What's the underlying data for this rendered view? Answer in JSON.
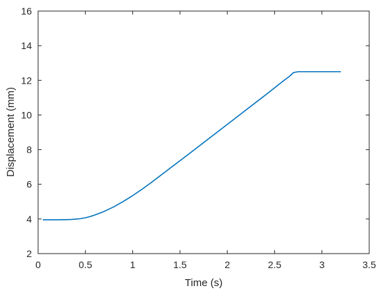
{
  "chart_data": {
    "type": "line",
    "title": "",
    "xlabel": "Time (s)",
    "ylabel": "Displacement (mm)",
    "xlim": [
      0,
      3.5
    ],
    "ylim": [
      2,
      16
    ],
    "xticks": [
      0,
      0.5,
      1,
      1.5,
      2,
      2.5,
      3,
      3.5
    ],
    "xtick_labels": [
      "0",
      "0.5",
      "1",
      "1.5",
      "2",
      "2.5",
      "3",
      "3.5"
    ],
    "yticks": [
      2,
      4,
      6,
      8,
      10,
      12,
      14,
      16
    ],
    "ytick_labels": [
      "2",
      "4",
      "6",
      "8",
      "10",
      "12",
      "14",
      "16"
    ],
    "grid": false,
    "series": [
      {
        "color": "#0072bd",
        "x": [
          0.05,
          0.2,
          0.3,
          0.35,
          0.4,
          0.45,
          0.5,
          0.55,
          0.6,
          0.7,
          0.8,
          0.9,
          1.0,
          1.1,
          1.2,
          1.4,
          1.6,
          1.8,
          2.0,
          2.2,
          2.4,
          2.6,
          2.65,
          2.68,
          2.7,
          2.75,
          2.8,
          3.0,
          3.2
        ],
        "values": [
          3.95,
          3.95,
          3.96,
          3.97,
          3.99,
          4.02,
          4.07,
          4.14,
          4.23,
          4.44,
          4.7,
          5.01,
          5.35,
          5.72,
          6.12,
          6.95,
          7.78,
          8.62,
          9.46,
          10.3,
          11.14,
          12.0,
          12.2,
          12.35,
          12.45,
          12.5,
          12.5,
          12.5,
          12.5
        ]
      }
    ]
  }
}
